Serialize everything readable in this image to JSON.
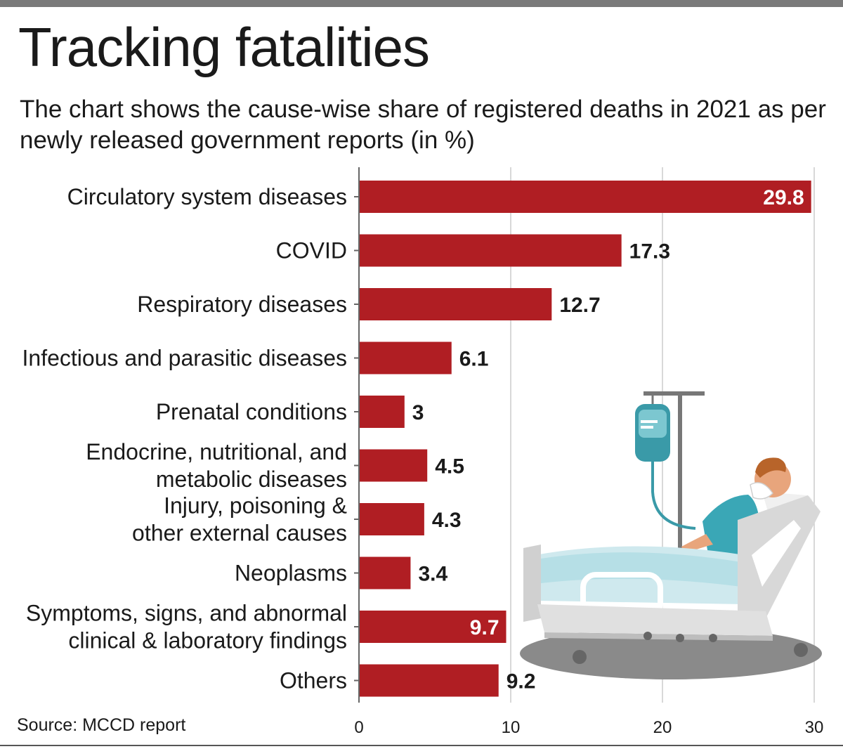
{
  "header": {
    "title": "Tracking fatalities",
    "subtitle": "The chart shows the cause-wise share of registered deaths in 2021 as per newly released government reports (in %)"
  },
  "footer": {
    "source": "Source: MCCD report"
  },
  "colors": {
    "bar": "#b01e23",
    "value_outside": "#1a1a1a",
    "value_inside": "#ffffff",
    "axis": "#666666",
    "grid": "#cccccc"
  },
  "illustration": {
    "icon": "hospital-patient-iv-drip-icon"
  },
  "chart_data": {
    "type": "bar",
    "orientation": "horizontal",
    "title": "Tracking fatalities",
    "subtitle": "The chart shows the cause-wise share of registered deaths in 2021 as per newly released government reports (in %)",
    "xlabel": "",
    "ylabel": "",
    "xlim": [
      0,
      30
    ],
    "xticks": [
      0,
      10,
      20,
      30
    ],
    "grid": true,
    "categories": [
      [
        "Circulatory system diseases"
      ],
      [
        "COVID"
      ],
      [
        "Respiratory diseases"
      ],
      [
        "Infectious and parasitic diseases"
      ],
      [
        "Prenatal conditions"
      ],
      [
        "Endocrine, nutritional, and",
        "metabolic diseases"
      ],
      [
        "Injury, poisoning &",
        "other external causes"
      ],
      [
        "Neoplasms"
      ],
      [
        "Symptoms, signs, and abnormal",
        "clinical & laboratory findings"
      ],
      [
        "Others"
      ]
    ],
    "values": [
      29.8,
      17.3,
      12.7,
      6.1,
      3,
      4.5,
      4.3,
      3.4,
      9.7,
      9.2
    ],
    "value_labels": [
      "29.8",
      "17.3",
      "12.7",
      "6.1",
      "3",
      "4.5",
      "4.3",
      "3.4",
      "9.7",
      "9.2"
    ],
    "label_inside_bar": [
      true,
      false,
      false,
      false,
      false,
      false,
      false,
      false,
      true,
      false
    ]
  }
}
